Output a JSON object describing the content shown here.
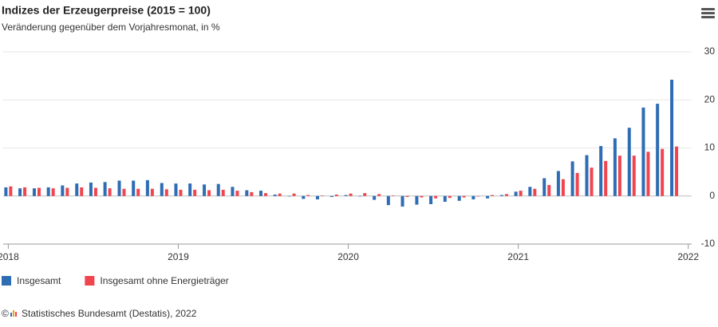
{
  "chart_data": {
    "type": "bar",
    "title": "Indizes der Erzeugerpreise (2015 = 100)",
    "subtitle": "Veränderung gegenüber dem Vorjahresmonat, in %",
    "x": [
      2018,
      2018.083,
      2018.167,
      2018.25,
      2018.333,
      2018.417,
      2018.5,
      2018.583,
      2018.667,
      2018.75,
      2018.833,
      2018.917,
      2019,
      2019.083,
      2019.167,
      2019.25,
      2019.333,
      2019.417,
      2019.5,
      2019.583,
      2019.667,
      2019.75,
      2019.833,
      2019.917,
      2020,
      2020.083,
      2020.167,
      2020.25,
      2020.333,
      2020.417,
      2020.5,
      2020.583,
      2020.667,
      2020.75,
      2020.833,
      2020.917,
      2021,
      2021.083,
      2021.167,
      2021.25,
      2021.333,
      2021.417,
      2021.5,
      2021.583,
      2021.667,
      2021.75,
      2021.833,
      2021.917
    ],
    "series": [
      {
        "name": "Insgesamt",
        "color": "#2e6db4",
        "values": [
          1.8,
          1.6,
          1.6,
          1.8,
          2.2,
          2.6,
          2.8,
          2.9,
          3.2,
          3.2,
          3.3,
          2.7,
          2.6,
          2.6,
          2.4,
          2.5,
          1.9,
          1.2,
          1.1,
          0.3,
          -0.1,
          -0.6,
          -0.7,
          -0.2,
          0.2,
          -0.1,
          -0.8,
          -1.9,
          -2.2,
          -1.8,
          -1.7,
          -1.2,
          -1.0,
          -0.7,
          -0.5,
          0.2,
          0.9,
          1.9,
          3.7,
          5.2,
          7.2,
          8.5,
          10.4,
          12.0,
          14.2,
          18.4,
          19.2,
          24.2
        ]
      },
      {
        "name": "Insgesamt ohne Energieträger",
        "color": "#f0454f",
        "values": [
          2.0,
          1.8,
          1.7,
          1.6,
          1.7,
          1.8,
          1.7,
          1.6,
          1.5,
          1.5,
          1.5,
          1.4,
          1.3,
          1.3,
          1.2,
          1.3,
          1.1,
          0.8,
          0.6,
          0.5,
          0.5,
          0.2,
          0.1,
          0.3,
          0.5,
          0.6,
          0.4,
          0.1,
          -0.2,
          -0.3,
          -0.5,
          -0.4,
          -0.3,
          -0.1,
          0.2,
          0.4,
          1.1,
          1.5,
          2.3,
          3.5,
          4.8,
          5.9,
          7.3,
          8.4,
          8.4,
          9.2,
          9.8,
          10.3
        ]
      }
    ],
    "xlim": [
      2017.97,
      2022.02
    ],
    "xticks": [
      2018,
      2019,
      2020,
      2021,
      2022
    ],
    "ylim": [
      -10,
      30
    ],
    "yticks": [
      -10,
      0,
      10,
      20,
      30
    ],
    "grid": true,
    "copyright": "©",
    "source": "Statistisches Bundesamt (Destatis), 2022"
  }
}
